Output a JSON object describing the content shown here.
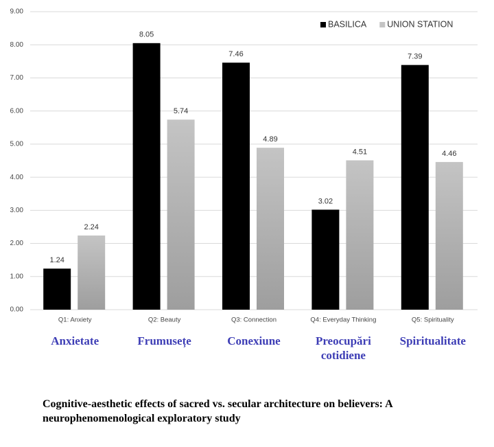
{
  "chart_data": {
    "type": "bar",
    "categories": [
      "Q1: Anxiety",
      "Q2: Beauty",
      "Q3: Connection",
      "Q4: Everyday Thinking",
      "Q5: Spirituality"
    ],
    "series": [
      {
        "name": "BASILICA",
        "color": "#000000",
        "values": [
          1.24,
          8.05,
          7.46,
          3.02,
          7.39
        ]
      },
      {
        "name": "UNION STATION",
        "color": "#c4c4c4",
        "values": [
          2.24,
          5.74,
          4.89,
          4.51,
          4.46
        ]
      }
    ],
    "ylim": [
      0,
      9
    ],
    "yticks": [
      {
        "value": 0,
        "label": "0.00"
      },
      {
        "value": 1,
        "label": "1.00"
      },
      {
        "value": 2,
        "label": "2.00"
      },
      {
        "value": 3,
        "label": "3.00"
      },
      {
        "value": 4,
        "label": "4.00"
      },
      {
        "value": 5,
        "label": "5.00"
      },
      {
        "value": 6,
        "label": "6.00"
      },
      {
        "value": 7,
        "label": "7.00"
      },
      {
        "value": 8,
        "label": "8.00"
      },
      {
        "value": 9,
        "label": "9.00"
      }
    ],
    "grid": true,
    "legend": "top-right",
    "category_translations": [
      "Anxietate",
      "Frumusețe",
      "Conexiune",
      "Preocupări cotidiene",
      "Spiritualitate"
    ]
  },
  "caption": "Cognitive-aesthetic effects of sacred vs. secular architecture on believers: A neurophenomenological exploratory study"
}
